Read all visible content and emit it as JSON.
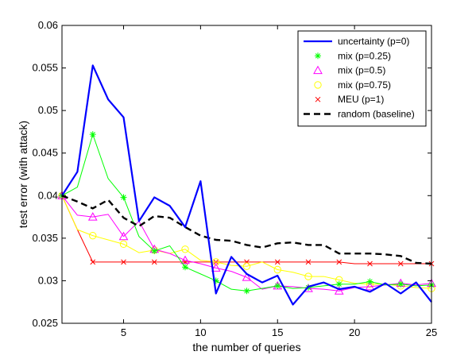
{
  "chart_data": {
    "type": "line",
    "title": "",
    "xlabel": "the number of queries",
    "ylabel": "test error (with attack)",
    "xlim": [
      1,
      25
    ],
    "ylim": [
      0.025,
      0.06
    ],
    "xticks": [
      5,
      10,
      15,
      20,
      25
    ],
    "yticks": [
      0.025,
      0.03,
      0.035,
      0.04,
      0.045,
      0.05,
      0.055,
      0.06
    ],
    "xtick_labels": [
      "5",
      "10",
      "15",
      "20",
      "25"
    ],
    "ytick_labels": [
      "0.025",
      "0.03",
      "0.035",
      "0.04",
      "0.045",
      "0.05",
      "0.055",
      "0.06"
    ],
    "grid": false,
    "legend_position": "top-right",
    "x": [
      1,
      2,
      3,
      4,
      5,
      6,
      7,
      8,
      9,
      10,
      11,
      12,
      13,
      14,
      15,
      16,
      17,
      18,
      19,
      20,
      21,
      22,
      23,
      24,
      25
    ],
    "series": [
      {
        "name": "uncertainty (p=0)",
        "color": "#0000ff",
        "style": "solid-thick",
        "marker": "none",
        "values": [
          0.04,
          0.0428,
          0.0553,
          0.0513,
          0.0492,
          0.037,
          0.0398,
          0.0388,
          0.0363,
          0.0417,
          0.0285,
          0.0328,
          0.0308,
          0.0298,
          0.0306,
          0.0272,
          0.0293,
          0.0298,
          0.029,
          0.0293,
          0.0287,
          0.0297,
          0.0285,
          0.0298,
          0.0275
        ]
      },
      {
        "name": "mix (p=0.25)",
        "color": "#00ff00",
        "style": "solid",
        "marker": "asterisk",
        "values": [
          0.04,
          0.041,
          0.0472,
          0.042,
          0.0398,
          0.0352,
          0.0335,
          0.0341,
          0.0316,
          0.0308,
          0.03,
          0.029,
          0.0288,
          0.0291,
          0.0294,
          0.0291,
          0.0292,
          0.0294,
          0.0296,
          0.0296,
          0.0299,
          0.0295,
          0.0296,
          0.0294,
          0.0295
        ]
      },
      {
        "name": "mix (p=0.5)",
        "color": "#ff00ff",
        "style": "solid",
        "marker": "triangle",
        "values": [
          0.04,
          0.0377,
          0.0375,
          0.0378,
          0.0352,
          0.037,
          0.0337,
          0.0332,
          0.0324,
          0.032,
          0.0315,
          0.0311,
          0.0304,
          0.029,
          0.0294,
          0.0293,
          0.0291,
          0.029,
          0.0288,
          0.0292,
          0.0293,
          0.0295,
          0.0297,
          0.0295,
          0.0297
        ]
      },
      {
        "name": "mix (p=0.75)",
        "color": "#ffff00",
        "style": "solid",
        "marker": "circle",
        "values": [
          0.04,
          0.036,
          0.0353,
          0.0348,
          0.0343,
          0.0333,
          0.0336,
          0.0332,
          0.0337,
          0.0324,
          0.0322,
          0.0318,
          0.0317,
          0.0322,
          0.0313,
          0.031,
          0.0305,
          0.0305,
          0.0301,
          0.0297,
          0.0296,
          0.0296,
          0.0294,
          0.0292,
          0.0291
        ]
      },
      {
        "name": "MEU (p=1)",
        "color": "#ff0000",
        "style": "solid",
        "marker": "x",
        "values": [
          0.04,
          0.036,
          0.0322,
          0.0322,
          0.0322,
          0.0322,
          0.0322,
          0.0322,
          0.0322,
          0.0322,
          0.0322,
          0.0322,
          0.0322,
          0.0322,
          0.0322,
          0.0322,
          0.0322,
          0.0322,
          0.0322,
          0.032,
          0.032,
          0.032,
          0.032,
          0.032,
          0.032
        ]
      },
      {
        "name": "random (baseline)",
        "color": "#000000",
        "style": "dashed-thick",
        "marker": "none",
        "values": [
          0.04,
          0.0393,
          0.0385,
          0.0395,
          0.0374,
          0.0364,
          0.0376,
          0.0374,
          0.0363,
          0.0353,
          0.0348,
          0.0347,
          0.0342,
          0.0339,
          0.0344,
          0.0345,
          0.0342,
          0.0342,
          0.0332,
          0.0332,
          0.0332,
          0.0331,
          0.0329,
          0.0321,
          0.032
        ]
      }
    ]
  }
}
